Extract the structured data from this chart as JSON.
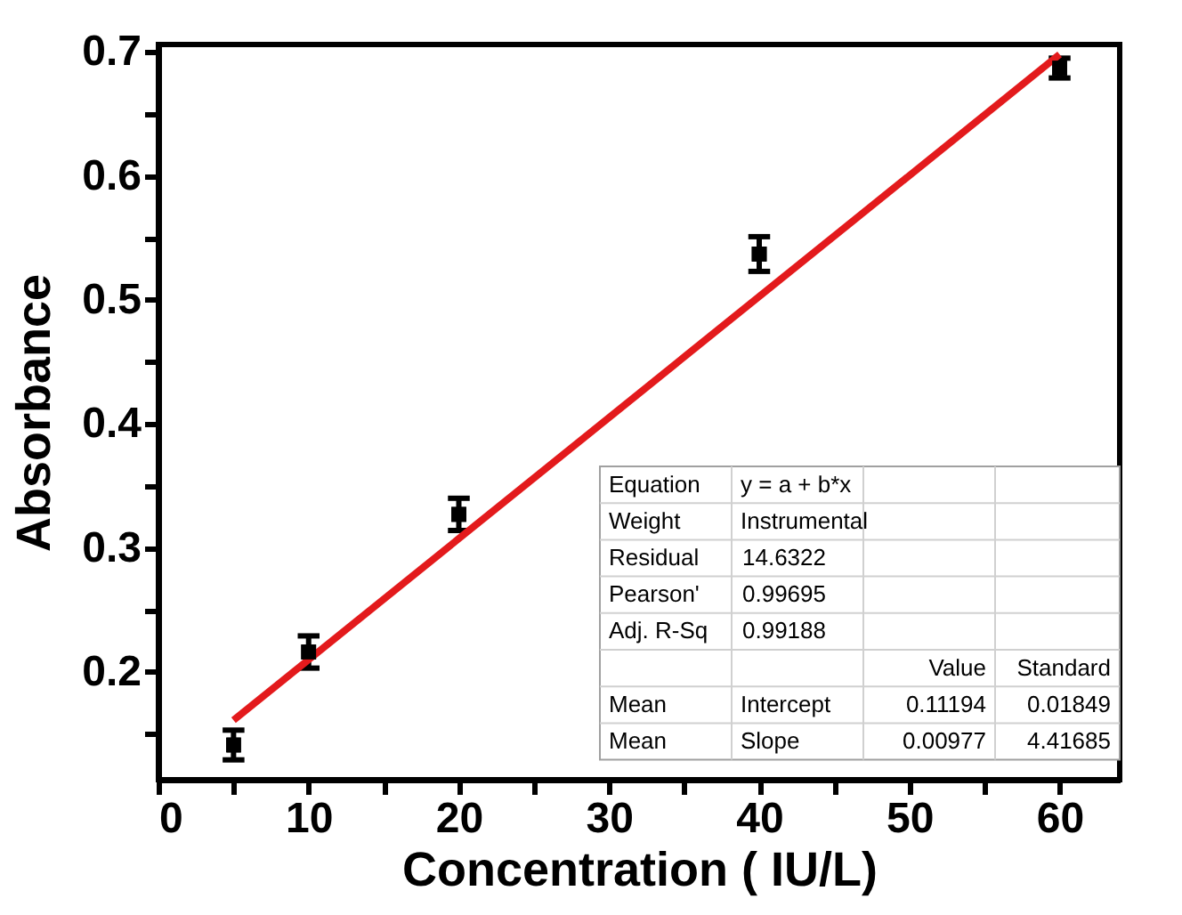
{
  "chart_data": {
    "type": "scatter",
    "xlabel": "Concentration ( IU/L)",
    "ylabel": "Absorbance",
    "xlim": [
      0,
      64
    ],
    "ylim": [
      0.113,
      0.706
    ],
    "xticks": [
      0,
      {
        "value": 5,
        "label": null
      },
      10,
      {
        "value": 15,
        "label": null
      },
      20,
      {
        "value": 25,
        "label": null
      },
      30,
      {
        "value": 35,
        "label": null
      },
      40,
      {
        "value": 45,
        "label": null
      },
      50,
      {
        "value": 55,
        "label": null
      },
      60
    ],
    "yticks": [
      {
        "value": 0.15,
        "label": null
      },
      0.2,
      {
        "value": 0.25,
        "label": null
      },
      0.3,
      {
        "value": 0.35,
        "label": null
      },
      0.4,
      {
        "value": 0.45,
        "label": null
      },
      0.5,
      {
        "value": 0.55,
        "label": null
      },
      0.6,
      {
        "value": 0.65,
        "label": null
      },
      0.7
    ],
    "series": [
      {
        "color": "#000000",
        "x": [
          5,
          10,
          20,
          40,
          60
        ],
        "values": [
          0.141,
          0.216,
          0.327,
          0.537,
          0.687
        ],
        "errors": [
          0.012,
          0.013,
          0.013,
          0.014,
          0.008
        ],
        "marker": "square"
      },
      {
        "type": "line",
        "color": "#e31a1c",
        "x": [
          5,
          60
        ],
        "values": [
          0.161,
          0.698
        ],
        "line_style": "solid"
      }
    ],
    "annotations": [
      "Equation",
      "y = a + b*x",
      "Weight",
      "Instrumental",
      "Residual",
      "14.6322",
      "Pearson'",
      "0.99695",
      "Adj. R-Sq",
      "0.99188",
      "Value",
      "Standard",
      "Mean",
      "Intercept",
      "0.11194",
      "0.01849",
      "Mean",
      "Slope",
      "0.00977",
      "4.41685"
    ],
    "grid": false
  }
}
